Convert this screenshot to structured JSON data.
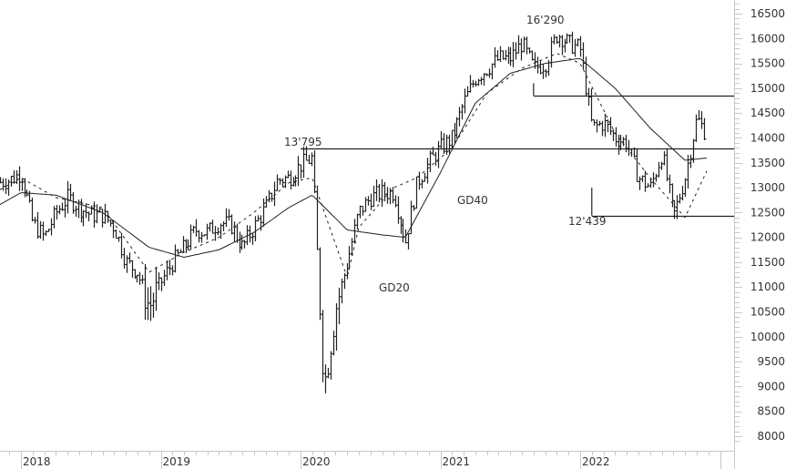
{
  "chart_data": {
    "type": "line",
    "subtype": "ohlc-bar-weekly",
    "title": "",
    "xlabel": "",
    "ylabel": "",
    "ylim": [
      7800,
      16700
    ],
    "y_ticks": [
      8000,
      8500,
      9000,
      9500,
      10000,
      10500,
      11000,
      11500,
      12000,
      12500,
      13000,
      13500,
      14000,
      14500,
      15000,
      15500,
      16000,
      16500
    ],
    "x_ticks": [
      "2018",
      "2019",
      "2020",
      "2021",
      "2022"
    ],
    "x_range": [
      "2017-10",
      "2022-12"
    ],
    "grid": false,
    "legend": null,
    "series": [
      {
        "name": "Price (weekly bars)",
        "style": "ohlc",
        "x": [
          "2017-10",
          "2017-12",
          "2018-01",
          "2018-02",
          "2018-03",
          "2018-04",
          "2018-05",
          "2018-06",
          "2018-07",
          "2018-08",
          "2018-09",
          "2018-10",
          "2018-11",
          "2018-12",
          "2019-01",
          "2019-02",
          "2019-03",
          "2019-04",
          "2019-05",
          "2019-06",
          "2019-07",
          "2019-08",
          "2019-09",
          "2019-10",
          "2019-11",
          "2019-12",
          "2020-01",
          "2020-02",
          "2020-03",
          "2020-04",
          "2020-05",
          "2020-06",
          "2020-07",
          "2020-08",
          "2020-09",
          "2020-10",
          "2020-11",
          "2020-12",
          "2021-01",
          "2021-02",
          "2021-03",
          "2021-04",
          "2021-05",
          "2021-06",
          "2021-07",
          "2021-08",
          "2021-09",
          "2021-10",
          "2021-11",
          "2021-12",
          "2022-01",
          "2022-02",
          "2022-03",
          "2022-04",
          "2022-05",
          "2022-06",
          "2022-07",
          "2022-08",
          "2022-09",
          "2022-10",
          "2022-11",
          "2022-12"
        ],
        "values": [
          13050,
          13150,
          13300,
          12300,
          12000,
          12500,
          12800,
          12600,
          12450,
          12450,
          12200,
          11500,
          11300,
          10600,
          11100,
          11500,
          11800,
          12150,
          12100,
          12300,
          12250,
          11800,
          12200,
          12600,
          13150,
          13200,
          13450,
          13600,
          9000,
          10600,
          11500,
          12500,
          12800,
          12900,
          12900,
          11900,
          13100,
          13500,
          13800,
          14000,
          14700,
          15200,
          15400,
          15600,
          15600,
          15900,
          15400,
          15500,
          16100,
          15900,
          15800,
          14200,
          14300,
          14000,
          13900,
          13200,
          13000,
          13700,
          12400,
          13200,
          14400,
          14000
        ]
      },
      {
        "name": "GD20",
        "style": "dashed",
        "x": [
          "2017-10",
          "2018-01",
          "2018-04",
          "2018-08",
          "2018-12",
          "2019-03",
          "2019-06",
          "2019-09",
          "2019-12",
          "2020-02",
          "2020-05",
          "2020-06",
          "2020-09",
          "2020-11",
          "2021-02",
          "2021-05",
          "2021-08",
          "2021-11",
          "2022-01",
          "2022-04",
          "2022-07",
          "2022-10",
          "2022-12"
        ],
        "values": [
          12800,
          13200,
          12800,
          12600,
          11300,
          11700,
          12000,
          12500,
          13100,
          13200,
          11200,
          12200,
          13000,
          13200,
          13800,
          14900,
          15400,
          15700,
          15500,
          14100,
          13200,
          12400,
          13400
        ]
      },
      {
        "name": "GD40",
        "style": "solid",
        "x": [
          "2017-10",
          "2018-01",
          "2018-04",
          "2018-08",
          "2018-12",
          "2019-03",
          "2019-06",
          "2019-09",
          "2019-12",
          "2020-02",
          "2020-05",
          "2020-08",
          "2020-10",
          "2021-01",
          "2021-04",
          "2021-07",
          "2021-10",
          "2022-01",
          "2022-04",
          "2022-07",
          "2022-10",
          "2022-12"
        ],
        "values": [
          12500,
          12900,
          12850,
          12500,
          11800,
          11600,
          11750,
          12100,
          12600,
          12850,
          12150,
          12050,
          12000,
          13300,
          14700,
          15300,
          15500,
          15600,
          15000,
          14200,
          13550,
          13600
        ]
      }
    ],
    "horizontal_lines": [
      {
        "value": 14850,
        "from": "2021-09",
        "label": ""
      },
      {
        "value": 13795,
        "from": "2020-01",
        "label": "13'795"
      },
      {
        "value": 12439,
        "from": "2022-02",
        "label": "12'439"
      }
    ],
    "annotations": [
      {
        "text": "13'795",
        "x": "2020-01",
        "y": 13795
      },
      {
        "text": "16'290",
        "x": "2021-11",
        "y": 16290
      },
      {
        "text": "12'439",
        "x": "2022-02",
        "y": 12439
      },
      {
        "text": "GD40",
        "x": "2021-02",
        "y": 13000
      },
      {
        "text": "GD20",
        "x": "2020-06",
        "y": 10900
      }
    ]
  },
  "labels": {
    "high_label": "16'290",
    "resistance_label": "13'795",
    "support_label": "12'439",
    "gd40_label": "GD40",
    "gd20_label": "GD20"
  }
}
